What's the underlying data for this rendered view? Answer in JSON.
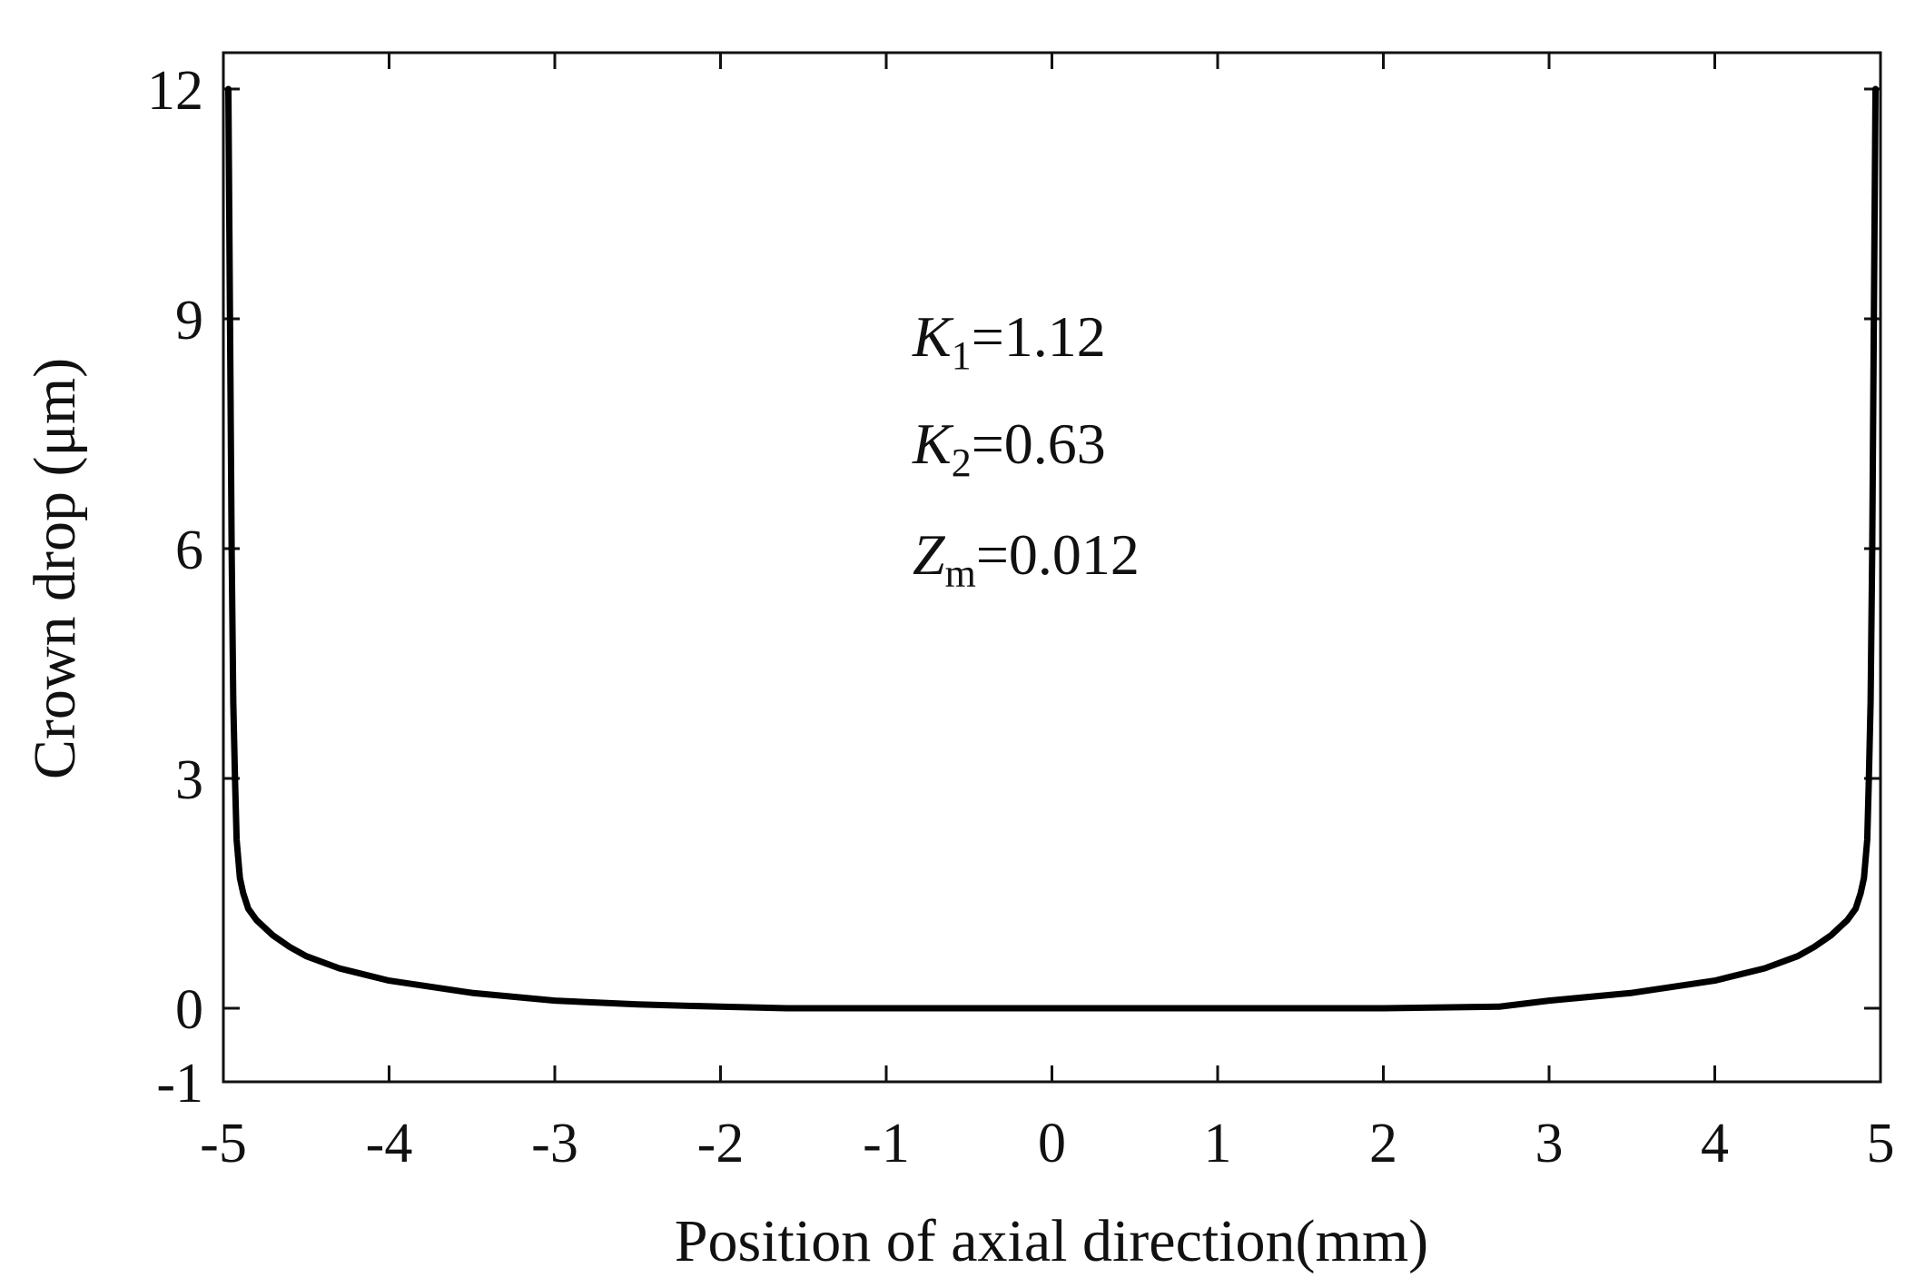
{
  "chart_data": {
    "type": "line",
    "title": "",
    "xlabel": "Position of axial direction(mm)",
    "ylabel": "Crown drop (μm)",
    "xlim": [
      -5,
      5
    ],
    "ylim": [
      -1,
      12.5
    ],
    "xticks": [
      -5,
      -4,
      -3,
      -2,
      -1,
      0,
      1,
      2,
      3,
      4,
      5
    ],
    "xtick_labels": [
      "-5",
      "-4",
      "-3",
      "-2",
      "-1",
      "0",
      "1",
      "2",
      "3",
      "4",
      "5"
    ],
    "yticks": [
      -1,
      0,
      3,
      6,
      9,
      12
    ],
    "ytick_labels": [
      "-1",
      "0",
      "3",
      "6",
      "9",
      "12"
    ],
    "grid": false,
    "legend": "none",
    "line_color": "#000000",
    "annotations": [
      {
        "symbol": "K",
        "subscript": "1",
        "text": "=1.12"
      },
      {
        "symbol": "K",
        "subscript": "2",
        "text": "=0.63"
      },
      {
        "symbol": "Z",
        "subscript": "m",
        "text": "=0.012"
      }
    ],
    "series": [
      {
        "x": [
          -4.97,
          -4.96,
          -4.95,
          -4.94,
          -4.93,
          -4.92,
          -4.9,
          -4.88,
          -4.85,
          -4.8,
          -4.7,
          -4.6,
          -4.5,
          -4.3,
          -4.0,
          -3.5,
          -3.0,
          -2.5,
          -2.0,
          -1.6,
          -1.0,
          0.0,
          1.0,
          2.0,
          2.7,
          3.0,
          3.5,
          4.0,
          4.3,
          4.5,
          4.6,
          4.7,
          4.8,
          4.85,
          4.88,
          4.9,
          4.92,
          4.93,
          4.94,
          4.95,
          4.96,
          4.97
        ],
        "y": [
          12.0,
          9.0,
          6.0,
          4.0,
          3.0,
          2.2,
          1.7,
          1.5,
          1.3,
          1.15,
          0.95,
          0.8,
          0.68,
          0.52,
          0.36,
          0.2,
          0.1,
          0.05,
          0.02,
          0.0,
          0.0,
          0.0,
          0.0,
          0.0,
          0.02,
          0.1,
          0.2,
          0.36,
          0.52,
          0.68,
          0.8,
          0.95,
          1.15,
          1.3,
          1.5,
          1.7,
          2.2,
          3.0,
          4.0,
          6.0,
          9.0,
          12.0
        ]
      }
    ]
  }
}
